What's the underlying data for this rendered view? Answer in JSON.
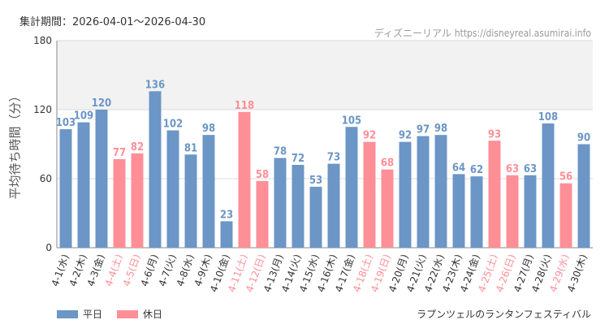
{
  "period_text": "集計期間：2026-04-01～2026-04-30",
  "credit": {
    "name": "ディズニーリアル",
    "url": "https://disneyreal.asumirai.info"
  },
  "subtitle": "ラプンツェルのランタンフェスティバル",
  "legend": [
    {
      "label": "平日",
      "color": "#6b96c6"
    },
    {
      "label": "休日",
      "color": "#ff8f97"
    }
  ],
  "chart_data": {
    "type": "bar",
    "ylabel": "平均待ち時間（分）",
    "ylim": [
      0,
      180
    ],
    "yticks": [
      0,
      60,
      120,
      180
    ],
    "highlight_band": [
      120,
      180
    ],
    "grid": true,
    "legend_position": "bottom-left",
    "categories": [
      "4-1(水)",
      "4-2(木)",
      "4-3(金)",
      "4-4(土)",
      "4-5(日)",
      "4-6(月)",
      "4-7(火)",
      "4-8(水)",
      "4-9(木)",
      "4-10(金)",
      "4-11(土)",
      "4-12(日)",
      "4-13(月)",
      "4-14(火)",
      "4-15(水)",
      "4-16(木)",
      "4-17(金)",
      "4-18(土)",
      "4-19(日)",
      "4-20(月)",
      "4-21(火)",
      "4-22(水)",
      "4-23(木)",
      "4-24(金)",
      "4-25(土)",
      "4-26(日)",
      "4-27(月)",
      "4-28(火)",
      "4-29(水)",
      "4-30(木)"
    ],
    "values": [
      103,
      109,
      120,
      77,
      82,
      136,
      102,
      81,
      98,
      23,
      118,
      58,
      78,
      72,
      53,
      73,
      105,
      92,
      68,
      92,
      97,
      98,
      64,
      62,
      93,
      63,
      63,
      108,
      56,
      90
    ],
    "day_type": [
      "平日",
      "平日",
      "平日",
      "休日",
      "休日",
      "平日",
      "平日",
      "平日",
      "平日",
      "平日",
      "休日",
      "休日",
      "平日",
      "平日",
      "平日",
      "平日",
      "平日",
      "休日",
      "休日",
      "平日",
      "平日",
      "平日",
      "平日",
      "平日",
      "休日",
      "休日",
      "平日",
      "平日",
      "休日",
      "平日"
    ]
  }
}
